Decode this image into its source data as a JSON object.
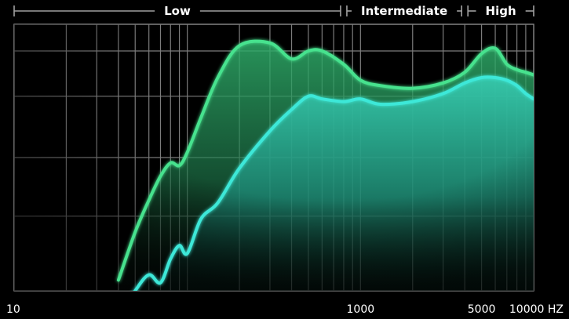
{
  "chart_data": {
    "type": "area",
    "title": "",
    "xlabel": "",
    "ylabel": "",
    "x_scale": "log",
    "xlim": [
      10,
      10000
    ],
    "ylim": [
      0,
      100
    ],
    "grid": true,
    "legend": "none",
    "frequency_bands": [
      {
        "label": "Low",
        "from": 10,
        "to": 800
      },
      {
        "label": "Intermediate",
        "from": 800,
        "to": 4000
      },
      {
        "label": "High",
        "from": 4000,
        "to": 10000
      }
    ],
    "x_ticks": [
      {
        "value": 10,
        "label": "10"
      },
      {
        "value": 1000,
        "label": "1000"
      },
      {
        "value": 5000,
        "label": "5000"
      },
      {
        "value": 10000,
        "label": "10000 HZ"
      }
    ],
    "series": [
      {
        "color": "#46e28e",
        "x": [
          40,
          50,
          60,
          70,
          80,
          90,
          100,
          120,
          150,
          200,
          300,
          400,
          500,
          600,
          800,
          1000,
          1300,
          2000,
          3000,
          4000,
          5000,
          6000,
          7000,
          8000,
          9000,
          10000
        ],
        "y": [
          4,
          22,
          34,
          43,
          48,
          47,
          52,
          65,
          80,
          92,
          93,
          87,
          90,
          90,
          85,
          79,
          77,
          76,
          78,
          82,
          89,
          91,
          85,
          83,
          82,
          81
        ]
      },
      {
        "color": "#3ee8d8",
        "x": [
          40,
          50,
          60,
          70,
          80,
          90,
          100,
          120,
          150,
          200,
          300,
          400,
          500,
          600,
          800,
          1000,
          1300,
          2000,
          3000,
          4000,
          5000,
          6000,
          7000,
          8000,
          9000,
          10000
        ],
        "y": [
          -10,
          0,
          6,
          3,
          12,
          17,
          14,
          27,
          33,
          46,
          60,
          68,
          73,
          72,
          71,
          72,
          70,
          71,
          74,
          78,
          80,
          80,
          79,
          77,
          74,
          72
        ]
      }
    ]
  }
}
